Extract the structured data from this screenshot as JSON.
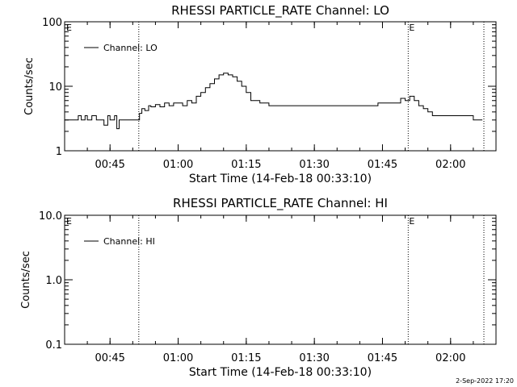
{
  "footer": {
    "timestamp": "2-Sep-2022 17:20"
  },
  "chart_data": [
    {
      "type": "line",
      "title": "RHESSI PARTICLE_RATE Channel: LO",
      "xlabel": "Start Time (14-Feb-18 00:33:10)",
      "ylabel": "Counts/sec",
      "yscale": "log",
      "xlim": [
        "00:35:00",
        "02:10:00"
      ],
      "ylim": [
        1,
        100
      ],
      "x_ticks": [
        "00:45",
        "01:00",
        "01:15",
        "01:30",
        "01:45",
        "02:00"
      ],
      "y_ticks": [
        "1",
        "10",
        "100"
      ],
      "grid": false,
      "legend": {
        "position": "top-left",
        "entries": [
          "Channel: LO"
        ]
      },
      "markers": [
        {
          "time": "00:51:20",
          "label": ""
        },
        {
          "time": "01:50:40",
          "label": "E"
        },
        {
          "time": "02:07:20",
          "label": ""
        }
      ],
      "corner_label": "E",
      "series": [
        {
          "name": "Channel: LO",
          "x": [
            "00:35:00",
            "00:37:00",
            "00:38:00",
            "00:38:40",
            "00:39:30",
            "00:40:00",
            "00:41:00",
            "00:42:00",
            "00:43:00",
            "00:43:40",
            "00:44:30",
            "00:45:00",
            "00:46:00",
            "00:46:30",
            "00:47:00",
            "00:48:00",
            "00:49:00",
            "00:50:00",
            "00:51:00",
            "00:51:30",
            "00:52:00",
            "00:52:40",
            "00:53:30",
            "00:54:00",
            "00:55:00",
            "00:56:00",
            "00:57:00",
            "00:58:00",
            "00:59:00",
            "01:00:00",
            "01:01:00",
            "01:02:00",
            "01:03:00",
            "01:04:00",
            "01:05:00",
            "01:06:00",
            "01:07:00",
            "01:08:00",
            "01:09:00",
            "01:10:00",
            "01:11:00",
            "01:12:00",
            "01:13:00",
            "01:14:00",
            "01:15:00",
            "01:16:00",
            "01:18:00",
            "01:20:00",
            "01:22:00",
            "01:24:00",
            "01:26:00",
            "01:28:00",
            "01:30:00",
            "01:32:00",
            "01:34:00",
            "01:36:00",
            "01:38:00",
            "01:40:00",
            "01:42:00",
            "01:44:00",
            "01:46:00",
            "01:48:00",
            "01:49:00",
            "01:50:00",
            "01:51:00",
            "01:52:00",
            "01:53:00",
            "01:54:00",
            "01:55:00",
            "01:56:00",
            "01:58:00",
            "02:00:00",
            "02:02:00",
            "02:04:00",
            "02:05:00",
            "02:06:00",
            "02:07:00"
          ],
          "values": [
            3,
            3,
            3.5,
            3,
            3.5,
            3,
            3.5,
            3,
            3,
            2.5,
            3.5,
            3,
            3.5,
            2.2,
            3,
            3,
            3,
            3,
            3,
            3.8,
            4.5,
            4.2,
            5,
            4.8,
            5.2,
            4.8,
            5.5,
            5,
            5.5,
            5.5,
            5,
            6,
            5.5,
            7,
            8,
            9.5,
            11,
            13,
            15,
            16,
            15,
            14,
            12,
            10,
            8,
            6,
            5.5,
            5,
            5,
            5,
            5,
            5,
            5,
            5,
            5,
            5,
            5,
            5,
            5,
            5.5,
            5.5,
            5.5,
            6.5,
            6,
            7,
            6,
            5,
            4.5,
            4,
            3.5,
            3.5,
            3.5,
            3.5,
            3.5,
            3,
            3,
            3
          ]
        }
      ]
    },
    {
      "type": "line",
      "title": "RHESSI PARTICLE_RATE Channel: HI",
      "xlabel": "Start Time (14-Feb-18 00:33:10)",
      "ylabel": "Counts/sec",
      "yscale": "log",
      "xlim": [
        "00:35:00",
        "02:10:00"
      ],
      "ylim": [
        0.1,
        10
      ],
      "x_ticks": [
        "00:45",
        "01:00",
        "01:15",
        "01:30",
        "01:45",
        "02:00"
      ],
      "y_ticks": [
        "0.1",
        "1.0",
        "10.0"
      ],
      "grid": false,
      "legend": {
        "position": "top-left",
        "entries": [
          "Channel: HI"
        ]
      },
      "markers": [
        {
          "time": "00:51:20",
          "label": ""
        },
        {
          "time": "01:50:40",
          "label": "E"
        },
        {
          "time": "02:07:20",
          "label": ""
        }
      ],
      "corner_label": "E",
      "series": [
        {
          "name": "Channel: HI",
          "x": [],
          "values": []
        }
      ]
    }
  ]
}
